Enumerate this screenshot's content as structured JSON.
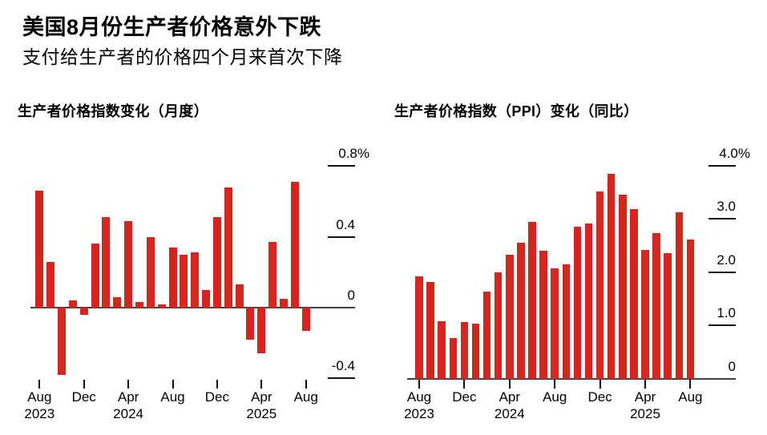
{
  "header": {
    "title": "美国8月份生产者价格意外下跌",
    "subtitle": "支付给生产者的价格四个月来首次下降"
  },
  "colors": {
    "bar": "#d6251d",
    "baseline": "#404040",
    "tick": "#111111",
    "text": "#000000",
    "background": "#ffffff"
  },
  "chart_data": [
    {
      "type": "bar",
      "title": "生产者价格指数变化（月度）",
      "unit": "percent, month-over-month",
      "ylim": [
        -0.4,
        0.8
      ],
      "grid": false,
      "legend": false,
      "y_ticks": [
        {
          "value": 0.8,
          "label": "0.8%"
        },
        {
          "value": 0.4,
          "label": "0.4"
        },
        {
          "value": 0,
          "label": "0"
        },
        {
          "value": -0.4,
          "label": "-0.4"
        }
      ],
      "x_ticks": [
        {
          "index": 0,
          "month": "Aug",
          "year": "2023"
        },
        {
          "index": 4,
          "month": "Dec"
        },
        {
          "index": 8,
          "month": "Apr",
          "year": "2024"
        },
        {
          "index": 12,
          "month": "Aug"
        },
        {
          "index": 16,
          "month": "Dec"
        },
        {
          "index": 20,
          "month": "Apr",
          "year": "2025"
        },
        {
          "index": 24,
          "month": "Aug"
        }
      ],
      "categories": [
        "Aug 2023",
        "Sep 2023",
        "Oct 2023",
        "Nov 2023",
        "Dec 2023",
        "Jan 2024",
        "Feb 2024",
        "Mar 2024",
        "Apr 2024",
        "May 2024",
        "Jun 2024",
        "Jul 2024",
        "Aug 2024",
        "Sep 2024",
        "Oct 2024",
        "Nov 2024",
        "Dec 2024",
        "Jan 2025",
        "Feb 2025",
        "Mar 2025",
        "Apr 2025",
        "May 2025",
        "Jun 2025",
        "Jul 2025",
        "Aug 2025"
      ],
      "values": [
        0.66,
        0.26,
        -0.38,
        0.04,
        -0.04,
        0.36,
        0.51,
        0.06,
        0.49,
        0.03,
        0.4,
        0.02,
        0.34,
        0.3,
        0.31,
        0.1,
        0.51,
        0.68,
        0.13,
        -0.18,
        -0.26,
        0.37,
        0.05,
        0.71,
        -0.13
      ]
    },
    {
      "type": "bar",
      "title": "生产者价格指数（PPI）变化（同比）",
      "unit": "percent, year-over-year",
      "ylim": [
        0,
        4.0
      ],
      "grid": false,
      "legend": false,
      "y_ticks": [
        {
          "value": 4.0,
          "label": "4.0%"
        },
        {
          "value": 3.0,
          "label": "3.0"
        },
        {
          "value": 2.0,
          "label": "2.0"
        },
        {
          "value": 1.0,
          "label": "1.0"
        },
        {
          "value": 0,
          "label": "0"
        }
      ],
      "x_ticks": [
        {
          "index": 0,
          "month": "Aug",
          "year": "2023"
        },
        {
          "index": 4,
          "month": "Dec"
        },
        {
          "index": 8,
          "month": "Apr",
          "year": "2024"
        },
        {
          "index": 12,
          "month": "Aug"
        },
        {
          "index": 16,
          "month": "Dec"
        },
        {
          "index": 20,
          "month": "Apr",
          "year": "2025"
        },
        {
          "index": 24,
          "month": "Aug"
        }
      ],
      "categories": [
        "Aug 2023",
        "Sep 2023",
        "Oct 2023",
        "Nov 2023",
        "Dec 2023",
        "Jan 2024",
        "Feb 2024",
        "Mar 2024",
        "Apr 2024",
        "May 2024",
        "Jun 2024",
        "Jul 2024",
        "Aug 2024",
        "Sep 2024",
        "Oct 2024",
        "Nov 2024",
        "Dec 2024",
        "Jan 2025",
        "Feb 2025",
        "Mar 2025",
        "Apr 2025",
        "May 2025",
        "Jun 2025",
        "Jul 2025",
        "Aug 2025"
      ],
      "values": [
        1.92,
        1.82,
        1.08,
        0.76,
        1.06,
        1.03,
        1.64,
        1.99,
        2.32,
        2.56,
        2.95,
        2.4,
        2.07,
        2.15,
        2.85,
        2.92,
        3.51,
        3.84,
        3.46,
        3.18,
        2.41,
        2.74,
        2.36,
        3.12,
        2.61
      ]
    }
  ]
}
